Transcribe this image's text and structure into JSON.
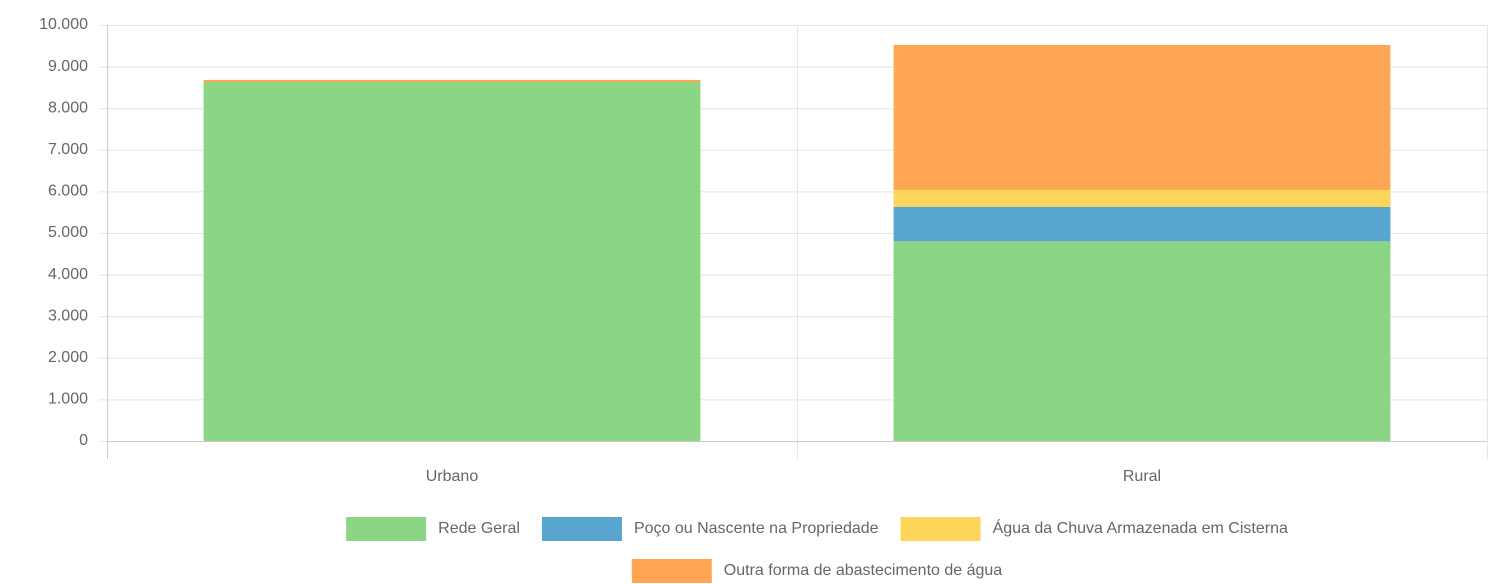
{
  "chart_data": {
    "type": "stacked_bar",
    "categories": [
      "Urbano",
      "Rural"
    ],
    "series": [
      {
        "name": "Rede Geral",
        "color": "#8bd685",
        "values": [
          8630,
          4800
        ]
      },
      {
        "name": "Poço ou Nascente na Propriedade",
        "color": "#58a6cf",
        "values": [
          0,
          825
        ]
      },
      {
        "name": "Água da Chuva Armazenada em Cisterna",
        "color": "#fdd55a",
        "values": [
          0,
          410
        ]
      },
      {
        "name": "Outra forma de abastecimento de água",
        "color": "#fea653",
        "values": [
          50,
          3485
        ]
      }
    ],
    "ylim": [
      0,
      10000
    ],
    "yticks": [
      0,
      {
        "value": 1000,
        "label": "1.000"
      },
      {
        "value": 2000,
        "label": "2.000"
      },
      {
        "value": 3000,
        "label": "3.000"
      },
      {
        "value": 4000,
        "label": "4.000"
      },
      {
        "value": 5000,
        "label": "5.000"
      },
      {
        "value": 6000,
        "label": "6.000"
      },
      {
        "value": 7000,
        "label": "7.000"
      },
      {
        "value": 8000,
        "label": "8.000"
      },
      {
        "value": 9000,
        "label": "9.000"
      },
      {
        "value": 10000,
        "label": "10.000"
      }
    ],
    "grid": true
  }
}
